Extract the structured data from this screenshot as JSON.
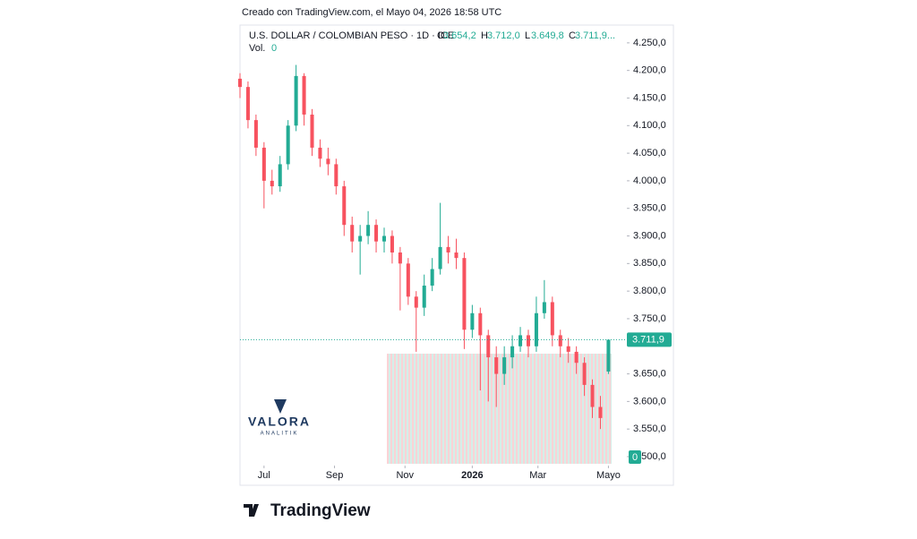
{
  "header": {
    "credit": "Creado con TradingView.com, el Mayo 04, 2026 18:58 UTC"
  },
  "chart_data": {
    "type": "candlestick",
    "title": "U.S. DOLLAR / COLOMBIAN PESO · 1D · ICE",
    "ohlc": {
      "labels": [
        "O",
        "H",
        "L",
        "C"
      ],
      "values": [
        3654.2,
        3712.0,
        3649.8,
        3711.9
      ],
      "value_labels": [
        "3.654,2",
        "3.712,0",
        "3.649,8",
        "3.711,9..."
      ]
    },
    "volume": {
      "label": "Vol.",
      "value": 0
    },
    "x": [
      0,
      5,
      10,
      15,
      20,
      25,
      30,
      35,
      40,
      45,
      50,
      55,
      60,
      65,
      70,
      75,
      80,
      85,
      90,
      95,
      100,
      105,
      110,
      115,
      120,
      125,
      130,
      135,
      140,
      145,
      150,
      155,
      160,
      165,
      170,
      175,
      180,
      185,
      190,
      195,
      200,
      205,
      210,
      215,
      220,
      225,
      230
    ],
    "open": [
      4185,
      4170,
      4110,
      4060,
      4000,
      3990,
      4030,
      4100,
      4190,
      4120,
      4060,
      4040,
      4030,
      3990,
      3920,
      3890,
      3900,
      3920,
      3890,
      3900,
      3870,
      3850,
      3790,
      3770,
      3810,
      3840,
      3880,
      3870,
      3860,
      3730,
      3760,
      3720,
      3680,
      3650,
      3680,
      3700,
      3720,
      3700,
      3760,
      3780,
      3720,
      3700,
      3690,
      3670,
      3630,
      3590,
      3654.2
    ],
    "high": [
      4195,
      4180,
      4120,
      4070,
      4020,
      4045,
      4110,
      4210,
      4195,
      4130,
      4075,
      4060,
      4040,
      4000,
      3935,
      3920,
      3945,
      3930,
      3915,
      3910,
      3880,
      3860,
      3800,
      3830,
      3860,
      3960,
      3900,
      3895,
      3870,
      3775,
      3770,
      3730,
      3700,
      3700,
      3720,
      3735,
      3730,
      3790,
      3820,
      3790,
      3730,
      3715,
      3700,
      3680,
      3640,
      3610,
      3712.0
    ],
    "low": [
      4150,
      4095,
      4045,
      3950,
      3975,
      3980,
      4020,
      4090,
      4100,
      4045,
      4025,
      4010,
      3975,
      3900,
      3870,
      3830,
      3885,
      3870,
      3870,
      3850,
      3765,
      3775,
      3690,
      3755,
      3800,
      3830,
      3850,
      3840,
      3695,
      3715,
      3620,
      3600,
      3590,
      3630,
      3660,
      3690,
      3680,
      3690,
      3750,
      3700,
      3680,
      3670,
      3650,
      3610,
      3570,
      3550,
      3649.8
    ],
    "close": [
      4170,
      4110,
      4060,
      4000,
      3990,
      4030,
      4100,
      4190,
      4120,
      4060,
      4040,
      4030,
      3990,
      3920,
      3890,
      3900,
      3920,
      3890,
      3900,
      3870,
      3850,
      3790,
      3770,
      3810,
      3840,
      3880,
      3870,
      3860,
      3730,
      3760,
      3720,
      3680,
      3650,
      3680,
      3700,
      3720,
      3700,
      3760,
      3780,
      3720,
      3700,
      3690,
      3670,
      3630,
      3590,
      3570,
      3711.9
    ],
    "up_color": "#22ab94",
    "down_color": "#f7525f",
    "xlim": [
      0,
      232
    ],
    "xticks": [
      {
        "value": 15,
        "label": "Jul"
      },
      {
        "value": 59,
        "label": "Sep"
      },
      {
        "value": 103,
        "label": "Nov"
      },
      {
        "value": 145,
        "label": "2026"
      },
      {
        "value": 186,
        "label": "Mar"
      },
      {
        "value": 230,
        "label": "Mayo"
      }
    ],
    "ylim": [
      3487,
      4279
    ],
    "yticks": [
      {
        "value": 4250,
        "label": "4.250,0"
      },
      {
        "value": 4200,
        "label": "4.200,0"
      },
      {
        "value": 4150,
        "label": "4.150,0"
      },
      {
        "value": 4100,
        "label": "4.100,0"
      },
      {
        "value": 4050,
        "label": "4.050,0"
      },
      {
        "value": 4000,
        "label": "4.000,0"
      },
      {
        "value": 3950,
        "label": "3.950,0"
      },
      {
        "value": 3900,
        "label": "3.900,0"
      },
      {
        "value": 3850,
        "label": "3.850,0"
      },
      {
        "value": 3800,
        "label": "3.800,0"
      },
      {
        "value": 3750,
        "label": "3.750,0"
      },
      {
        "value": 3650,
        "label": "3.650,0"
      },
      {
        "value": 3600,
        "label": "3.600,0"
      },
      {
        "value": 3550,
        "label": "3.550,0"
      },
      {
        "value": 3500,
        "label": "3.500,0"
      }
    ],
    "last_price": 3711.9,
    "last_price_label": "3.711,9"
  },
  "footer": {
    "watermark": "VALORA",
    "watermark_sub": "ANALITIK",
    "brand": "TradingView"
  }
}
